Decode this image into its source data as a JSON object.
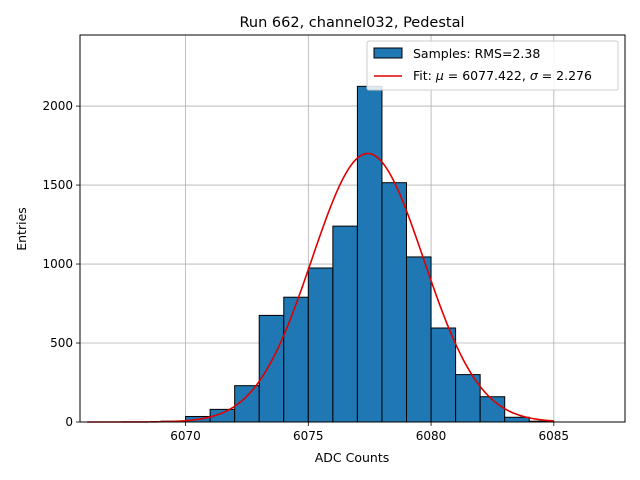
{
  "chart_data": {
    "type": "bar",
    "title": "Run 662, channel032, Pedestal",
    "xlabel": "ADC Counts",
    "ylabel": "Entries",
    "xlim": [
      6065.7,
      6087.9
    ],
    "ylim": [
      0,
      2450
    ],
    "xticks": [
      6070,
      6075,
      6080,
      6085
    ],
    "xtick_labels": [
      "6070",
      "6075",
      "6080",
      "6085"
    ],
    "yticks": [
      0,
      500,
      1000,
      1500,
      2000
    ],
    "ytick_labels": [
      "0",
      "500",
      "1000",
      "1500",
      "2000"
    ],
    "grid": true,
    "legend_position": "top-right",
    "bar_color": "#1f77b4",
    "fit_color": "#e00000",
    "histogram": {
      "name": "Samples: RMS=2.38",
      "bin_width": 1,
      "bin_lefts": [
        6069,
        6070,
        6071,
        6072,
        6073,
        6074,
        6075,
        6076,
        6077,
        6078,
        6079,
        6080,
        6081,
        6082,
        6083,
        6084
      ],
      "counts": [
        5,
        35,
        80,
        230,
        675,
        790,
        975,
        1240,
        2125,
        1515,
        1045,
        595,
        300,
        160,
        30,
        5
      ]
    },
    "fit": {
      "mu": 6077.422,
      "sigma": 2.276,
      "amplitude": 1700,
      "x_range": [
        6066,
        6085
      ],
      "legend_prefix": "Fit: ",
      "legend_mu_symbol": "μ",
      "legend_mu_text": " = 6077.422, ",
      "legend_sigma_symbol": "σ",
      "legend_sigma_text": " = 2.276"
    }
  }
}
